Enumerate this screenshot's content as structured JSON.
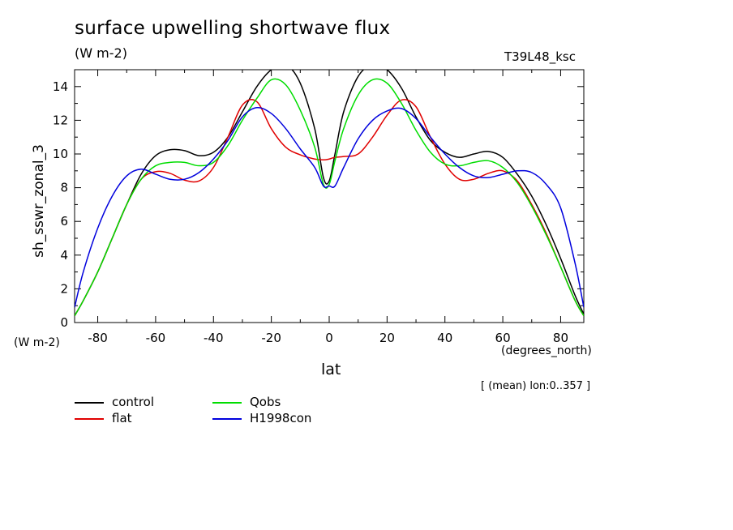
{
  "header": {
    "title": "surface upwelling shortwave flux",
    "units": "(W m-2)",
    "run_id": "T39L48_ksc"
  },
  "axes": {
    "ylabel": "sh_sswr_zonal_3",
    "yunits": "(W m-2)",
    "xlabel": "lat",
    "xunits": "(degrees_north)",
    "note": "[ (mean) lon:0..357 ]"
  },
  "chart_data": {
    "type": "line",
    "title": "surface upwelling shortwave flux",
    "subtitle": "(W m-2)",
    "xlabel": "lat",
    "ylabel": "sh_sswr_zonal_3",
    "xlim": [
      -88,
      88
    ],
    "ylim": [
      0,
      15
    ],
    "xticks": [
      -80,
      -60,
      -40,
      -20,
      0,
      20,
      40,
      60,
      80
    ],
    "yticks": [
      0,
      2,
      4,
      6,
      8,
      10,
      12,
      14
    ],
    "x": [
      -88,
      -85,
      -80,
      -75,
      -70,
      -65,
      -60,
      -55,
      -50,
      -45,
      -40,
      -35,
      -30,
      -25,
      -20,
      -15,
      -10,
      -5,
      -2,
      0,
      2,
      5,
      10,
      15,
      20,
      25,
      30,
      35,
      40,
      45,
      50,
      55,
      60,
      65,
      70,
      75,
      80,
      85,
      88
    ],
    "series": [
      {
        "name": "control",
        "color": "#000000",
        "values": [
          0.4,
          1.3,
          3.0,
          5.0,
          7.0,
          8.8,
          9.9,
          10.25,
          10.2,
          9.9,
          10.1,
          11.0,
          12.5,
          14.0,
          15.0,
          15.3,
          14.2,
          11.5,
          8.6,
          8.4,
          10.0,
          12.5,
          14.6,
          15.3,
          15.0,
          13.9,
          12.2,
          10.8,
          10.1,
          9.8,
          10.0,
          10.15,
          9.8,
          8.8,
          7.5,
          5.8,
          3.8,
          1.6,
          0.5
        ]
      },
      {
        "name": "flat",
        "color": "#e00000",
        "values": [
          0.4,
          1.3,
          3.0,
          5.0,
          7.0,
          8.5,
          8.95,
          8.85,
          8.45,
          8.4,
          9.2,
          11.0,
          12.9,
          13.1,
          11.5,
          10.4,
          9.95,
          9.7,
          9.65,
          9.7,
          9.8,
          9.85,
          10.0,
          11.0,
          12.3,
          13.2,
          12.8,
          11.0,
          9.4,
          8.5,
          8.5,
          8.85,
          9.0,
          8.4,
          7.0,
          5.3,
          3.3,
          1.3,
          0.4
        ]
      },
      {
        "name": "Qobs",
        "color": "#00dd00",
        "values": [
          0.4,
          1.3,
          3.0,
          5.0,
          7.0,
          8.5,
          9.3,
          9.5,
          9.5,
          9.3,
          9.5,
          10.5,
          12.0,
          13.3,
          14.4,
          14.1,
          12.6,
          10.4,
          8.2,
          8.2,
          9.6,
          11.5,
          13.5,
          14.4,
          14.2,
          13.0,
          11.4,
          10.1,
          9.4,
          9.3,
          9.5,
          9.6,
          9.2,
          8.3,
          6.9,
          5.2,
          3.3,
          1.3,
          0.4
        ]
      },
      {
        "name": "H1998con",
        "color": "#0000dd",
        "values": [
          0.9,
          3.0,
          5.6,
          7.5,
          8.7,
          9.1,
          8.8,
          8.5,
          8.5,
          8.9,
          9.7,
          10.8,
          12.2,
          12.75,
          12.4,
          11.5,
          10.3,
          9.2,
          8.1,
          8.1,
          8.1,
          9.2,
          10.9,
          12.0,
          12.55,
          12.7,
          12.1,
          11.0,
          10.0,
          9.2,
          8.7,
          8.6,
          8.8,
          9.0,
          8.9,
          8.2,
          6.8,
          3.5,
          0.9
        ]
      }
    ],
    "legend_position": "bottom-left",
    "grid": false
  }
}
